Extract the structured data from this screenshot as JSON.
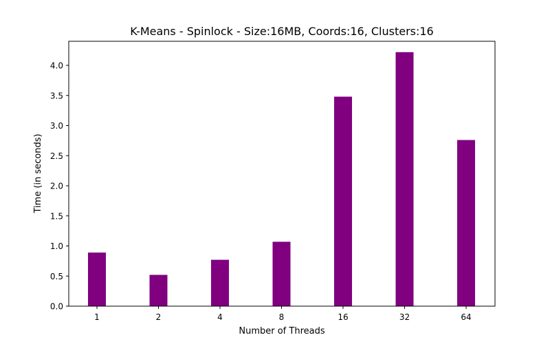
{
  "chart_data": {
    "type": "bar",
    "title": "K-Means - Spinlock - Size:16MB, Coords:16, Clusters:16",
    "xlabel": "Number of Threads",
    "ylabel": "Time (in seconds)",
    "categories": [
      "1",
      "2",
      "4",
      "8",
      "16",
      "32",
      "64"
    ],
    "values": [
      0.89,
      0.52,
      0.77,
      1.07,
      3.48,
      4.22,
      2.76
    ],
    "ylim": [
      0,
      4.4
    ],
    "yticks": [
      0.0,
      0.5,
      1.0,
      1.5,
      2.0,
      2.5,
      3.0,
      3.5,
      4.0
    ],
    "ytick_labels": [
      "0.0",
      "0.5",
      "1.0",
      "1.5",
      "2.0",
      "2.5",
      "3.0",
      "3.5",
      "4.0"
    ],
    "bar_color": "#800080",
    "grid": false,
    "legend": "none"
  }
}
